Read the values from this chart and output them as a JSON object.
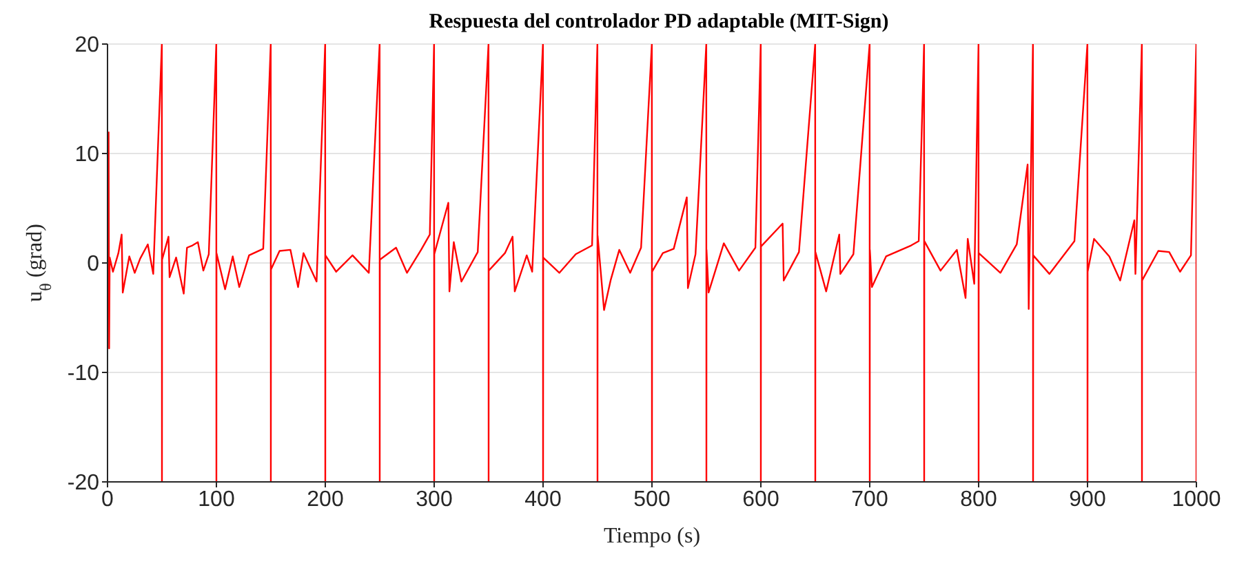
{
  "chart_data": {
    "type": "line",
    "title": "Respuesta del controlador PD adaptable (MIT-Sign)",
    "xlabel": "Tiempo (s)",
    "ylabel": "u$_{θ}$ (grad)",
    "xlim": [
      0,
      1000
    ],
    "xticks": [
      0,
      100,
      200,
      300,
      400,
      500,
      600,
      700,
      800,
      900,
      1000
    ],
    "ylim": [
      -20,
      20
    ],
    "yticks": [
      -20,
      -10,
      0,
      10,
      20
    ],
    "grid": true,
    "series": [
      {
        "color": "#ff0000",
        "x": [
          1,
          1.5,
          2,
          5,
          10,
          13,
          14,
          20,
          25,
          30,
          37,
          42,
          49.9,
          50,
          50.1,
          56,
          57,
          63,
          70,
          73,
          78,
          83,
          88,
          93,
          99.9,
          100,
          100.1,
          108,
          115,
          121,
          130,
          143,
          149.9,
          150,
          150.1,
          158,
          168,
          175,
          180,
          192,
          199.9,
          200,
          200.1,
          210,
          225,
          240,
          249.9,
          250,
          250.1,
          265,
          275,
          288,
          296,
          299.9,
          300,
          300.1,
          313,
          314,
          318,
          325,
          340,
          349.9,
          350,
          350.1,
          365,
          372,
          374,
          385,
          390,
          399.9,
          400,
          400.1,
          415,
          430,
          445,
          449.9,
          450,
          450.1,
          456,
          462,
          470,
          480,
          490,
          499.9,
          500,
          500.1,
          510,
          520,
          532,
          533,
          540,
          549.9,
          550,
          550.1,
          552,
          566,
          580,
          595,
          599.9,
          600,
          600.1,
          620,
          621,
          635,
          649.9,
          650,
          650.1,
          660,
          672,
          673,
          685,
          699.9,
          700,
          700.1,
          702,
          715,
          738,
          745,
          749.9,
          750,
          750.1,
          765,
          780,
          788,
          790,
          796,
          799.9,
          800,
          800.1,
          820,
          835,
          845,
          846,
          849.9,
          850,
          850.1,
          865,
          888,
          899.9,
          900,
          900.1,
          906,
          920,
          930,
          943,
          944,
          949.9,
          950,
          950.1,
          965,
          975,
          985,
          995,
          999.9,
          1000
        ],
        "values": [
          12,
          -7.8,
          0.5,
          -0.8,
          0.9,
          2.6,
          -2.7,
          0.6,
          -0.9,
          0.4,
          1.7,
          -1.0,
          20,
          -20,
          0.3,
          2.4,
          -1.3,
          0.5,
          -2.8,
          1.4,
          1.6,
          1.9,
          -0.7,
          0.8,
          20,
          -20,
          0.9,
          -2.4,
          0.6,
          -2.2,
          0.7,
          1.3,
          20,
          -20,
          -0.6,
          1.1,
          1.2,
          -2.2,
          0.9,
          -1.7,
          20,
          -20,
          0.7,
          -0.8,
          0.7,
          -0.9,
          20,
          -20,
          0.3,
          1.4,
          -0.9,
          1.2,
          2.6,
          20,
          -20,
          0.8,
          5.5,
          -2.6,
          1.9,
          -1.7,
          1.0,
          20,
          -20,
          -0.7,
          0.9,
          2.4,
          -2.6,
          0.7,
          -0.8,
          20,
          -20,
          0.5,
          -0.9,
          0.8,
          1.6,
          20,
          -20,
          2.5,
          -4.3,
          -1.6,
          1.2,
          -0.9,
          1.4,
          20,
          -20,
          -0.8,
          0.9,
          1.3,
          6.0,
          -2.3,
          0.8,
          20,
          -20,
          1.2,
          -2.7,
          1.8,
          -0.7,
          1.4,
          20,
          -20,
          1.5,
          3.6,
          -1.6,
          1.0,
          20,
          -20,
          1.0,
          -2.6,
          2.6,
          -1.0,
          0.8,
          20,
          -20,
          1.2,
          -2.2,
          0.6,
          1.6,
          2.0,
          20,
          -20,
          2.0,
          -0.7,
          1.2,
          -3.2,
          2.2,
          -1.9,
          20,
          -20,
          0.9,
          -0.9,
          1.7,
          9.0,
          -4.2,
          20,
          -20,
          0.7,
          -1.0,
          2.0,
          20,
          -20,
          -0.8,
          2.2,
          0.6,
          -1.6,
          3.9,
          -1.0,
          20,
          -20,
          -1.6,
          1.1,
          1.0,
          -0.8,
          0.7,
          20,
          -20
        ]
      }
    ]
  }
}
